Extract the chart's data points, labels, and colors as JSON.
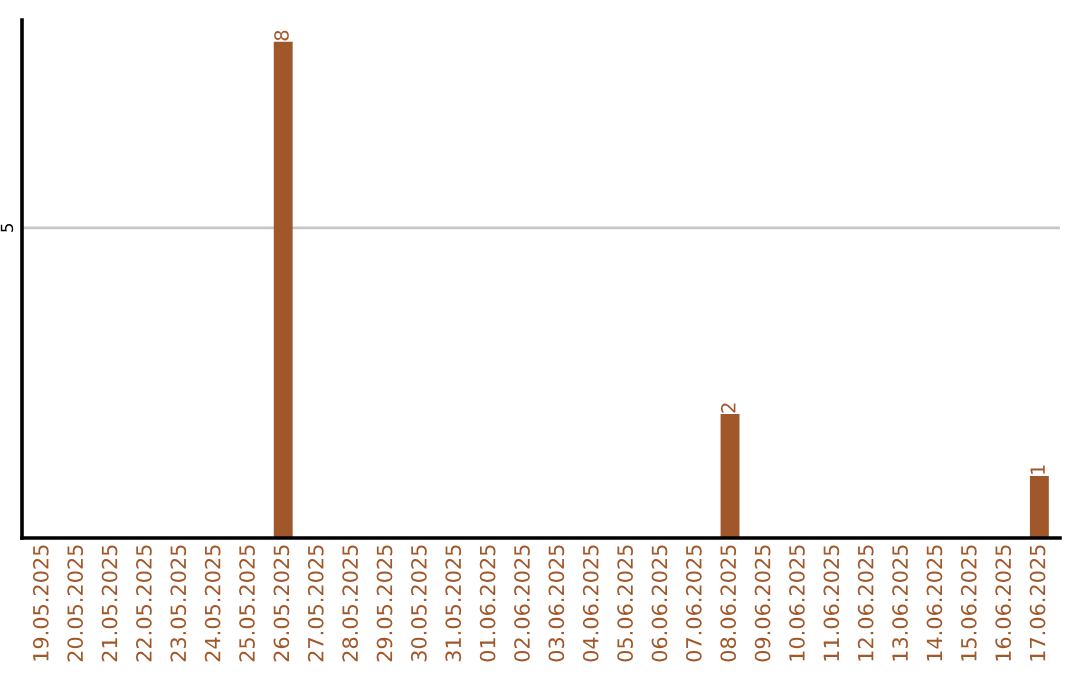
{
  "chart_data": {
    "type": "bar",
    "categories": [
      "19.05.2025",
      "20.05.2025",
      "21.05.2025",
      "22.05.2025",
      "23.05.2025",
      "24.05.2025",
      "25.05.2025",
      "26.05.2025",
      "27.05.2025",
      "28.05.2025",
      "29.05.2025",
      "30.05.2025",
      "31.05.2025",
      "01.06.2025",
      "02.06.2025",
      "03.06.2025",
      "04.06.2025",
      "05.06.2025",
      "06.06.2025",
      "07.06.2025",
      "08.06.2025",
      "09.06.2025",
      "10.06.2025",
      "11.06.2025",
      "12.06.2025",
      "13.06.2025",
      "14.06.2025",
      "15.06.2025",
      "16.06.2025",
      "17.06.2025"
    ],
    "values": [
      0,
      0,
      0,
      0,
      0,
      0,
      0,
      8,
      0,
      0,
      0,
      0,
      0,
      0,
      0,
      0,
      0,
      0,
      0,
      0,
      2,
      0,
      0,
      0,
      0,
      0,
      0,
      0,
      0,
      1
    ],
    "value_labels": [
      null,
      null,
      null,
      null,
      null,
      null,
      null,
      "8",
      null,
      null,
      null,
      null,
      null,
      null,
      null,
      null,
      null,
      null,
      null,
      null,
      "2",
      null,
      null,
      null,
      null,
      null,
      null,
      null,
      null,
      "1"
    ],
    "color": "#a0572a",
    "ylim": [
      0,
      8.35
    ],
    "yticks": [
      5
    ],
    "grid": "y"
  }
}
